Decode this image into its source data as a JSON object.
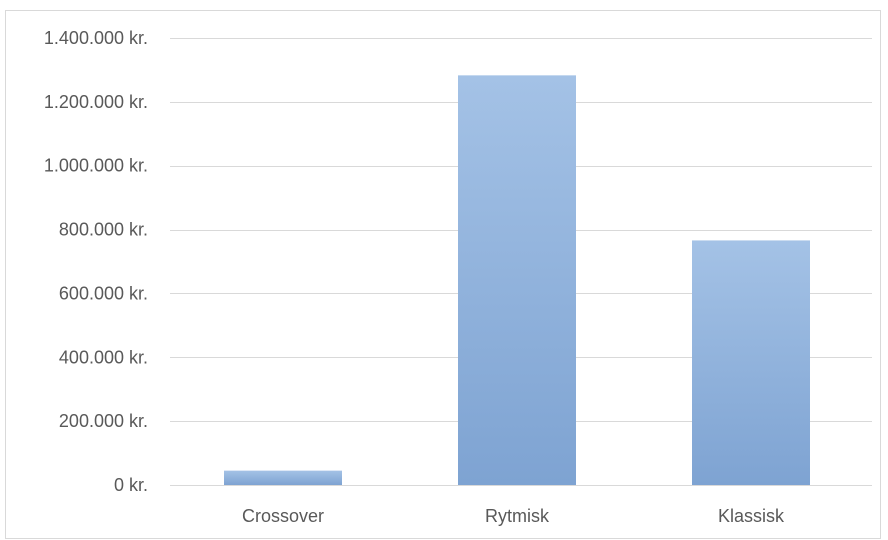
{
  "chart_data": {
    "type": "bar",
    "title": "",
    "xlabel": "",
    "ylabel": "",
    "categories": [
      "Crossover",
      "Rytmisk",
      "Klassisk"
    ],
    "values": [
      45000,
      1283000,
      766000
    ],
    "ylim": [
      0,
      1400000
    ],
    "yticks": [
      0,
      200000,
      400000,
      600000,
      800000,
      1000000,
      1200000,
      1400000
    ],
    "ytick_labels": [
      "0 kr.",
      "200.000 kr.",
      "400.000 kr.",
      "600.000 kr.",
      "800.000 kr.",
      "1.000.000 kr.",
      "1.200.000 kr.",
      "1.400.000 kr."
    ],
    "grid": true,
    "legend": "none",
    "colors": {
      "bar_top": "#a4c2e6",
      "bar_bottom": "#7ea3d2",
      "grid": "#d9d9d9",
      "text": "#595959"
    }
  }
}
